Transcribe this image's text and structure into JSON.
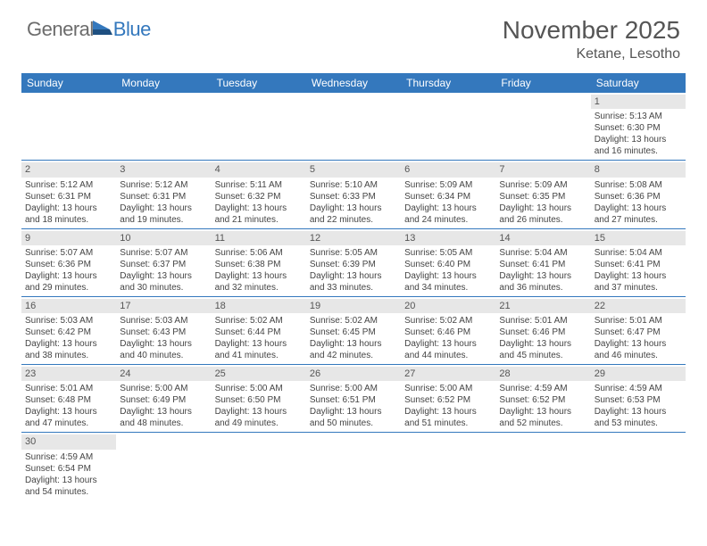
{
  "logo": {
    "general": "General",
    "blue": "Blue"
  },
  "title": "November 2025",
  "location": "Ketane, Lesotho",
  "colors": {
    "header_bg": "#3478bd",
    "daynum_bg": "#e7e7e7",
    "text": "#444444",
    "title_text": "#555555",
    "border": "#3478bd",
    "white": "#ffffff"
  },
  "day_names": [
    "Sunday",
    "Monday",
    "Tuesday",
    "Wednesday",
    "Thursday",
    "Friday",
    "Saturday"
  ],
  "calendar": {
    "first_day_index": 6,
    "days": [
      {
        "n": 1,
        "sunrise": "5:13 AM",
        "sunset": "6:30 PM",
        "dh": 13,
        "dm": 16
      },
      {
        "n": 2,
        "sunrise": "5:12 AM",
        "sunset": "6:31 PM",
        "dh": 13,
        "dm": 18
      },
      {
        "n": 3,
        "sunrise": "5:12 AM",
        "sunset": "6:31 PM",
        "dh": 13,
        "dm": 19
      },
      {
        "n": 4,
        "sunrise": "5:11 AM",
        "sunset": "6:32 PM",
        "dh": 13,
        "dm": 21
      },
      {
        "n": 5,
        "sunrise": "5:10 AM",
        "sunset": "6:33 PM",
        "dh": 13,
        "dm": 22
      },
      {
        "n": 6,
        "sunrise": "5:09 AM",
        "sunset": "6:34 PM",
        "dh": 13,
        "dm": 24
      },
      {
        "n": 7,
        "sunrise": "5:09 AM",
        "sunset": "6:35 PM",
        "dh": 13,
        "dm": 26
      },
      {
        "n": 8,
        "sunrise": "5:08 AM",
        "sunset": "6:36 PM",
        "dh": 13,
        "dm": 27
      },
      {
        "n": 9,
        "sunrise": "5:07 AM",
        "sunset": "6:36 PM",
        "dh": 13,
        "dm": 29
      },
      {
        "n": 10,
        "sunrise": "5:07 AM",
        "sunset": "6:37 PM",
        "dh": 13,
        "dm": 30
      },
      {
        "n": 11,
        "sunrise": "5:06 AM",
        "sunset": "6:38 PM",
        "dh": 13,
        "dm": 32
      },
      {
        "n": 12,
        "sunrise": "5:05 AM",
        "sunset": "6:39 PM",
        "dh": 13,
        "dm": 33
      },
      {
        "n": 13,
        "sunrise": "5:05 AM",
        "sunset": "6:40 PM",
        "dh": 13,
        "dm": 34
      },
      {
        "n": 14,
        "sunrise": "5:04 AM",
        "sunset": "6:41 PM",
        "dh": 13,
        "dm": 36
      },
      {
        "n": 15,
        "sunrise": "5:04 AM",
        "sunset": "6:41 PM",
        "dh": 13,
        "dm": 37
      },
      {
        "n": 16,
        "sunrise": "5:03 AM",
        "sunset": "6:42 PM",
        "dh": 13,
        "dm": 38
      },
      {
        "n": 17,
        "sunrise": "5:03 AM",
        "sunset": "6:43 PM",
        "dh": 13,
        "dm": 40
      },
      {
        "n": 18,
        "sunrise": "5:02 AM",
        "sunset": "6:44 PM",
        "dh": 13,
        "dm": 41
      },
      {
        "n": 19,
        "sunrise": "5:02 AM",
        "sunset": "6:45 PM",
        "dh": 13,
        "dm": 42
      },
      {
        "n": 20,
        "sunrise": "5:02 AM",
        "sunset": "6:46 PM",
        "dh": 13,
        "dm": 44
      },
      {
        "n": 21,
        "sunrise": "5:01 AM",
        "sunset": "6:46 PM",
        "dh": 13,
        "dm": 45
      },
      {
        "n": 22,
        "sunrise": "5:01 AM",
        "sunset": "6:47 PM",
        "dh": 13,
        "dm": 46
      },
      {
        "n": 23,
        "sunrise": "5:01 AM",
        "sunset": "6:48 PM",
        "dh": 13,
        "dm": 47
      },
      {
        "n": 24,
        "sunrise": "5:00 AM",
        "sunset": "6:49 PM",
        "dh": 13,
        "dm": 48
      },
      {
        "n": 25,
        "sunrise": "5:00 AM",
        "sunset": "6:50 PM",
        "dh": 13,
        "dm": 49
      },
      {
        "n": 26,
        "sunrise": "5:00 AM",
        "sunset": "6:51 PM",
        "dh": 13,
        "dm": 50
      },
      {
        "n": 27,
        "sunrise": "5:00 AM",
        "sunset": "6:52 PM",
        "dh": 13,
        "dm": 51
      },
      {
        "n": 28,
        "sunrise": "4:59 AM",
        "sunset": "6:52 PM",
        "dh": 13,
        "dm": 52
      },
      {
        "n": 29,
        "sunrise": "4:59 AM",
        "sunset": "6:53 PM",
        "dh": 13,
        "dm": 53
      },
      {
        "n": 30,
        "sunrise": "4:59 AM",
        "sunset": "6:54 PM",
        "dh": 13,
        "dm": 54
      }
    ]
  },
  "labels": {
    "sunrise": "Sunrise:",
    "sunset": "Sunset:",
    "daylight": "Daylight:",
    "hours": "hours",
    "and": "and",
    "minutes": "minutes."
  }
}
